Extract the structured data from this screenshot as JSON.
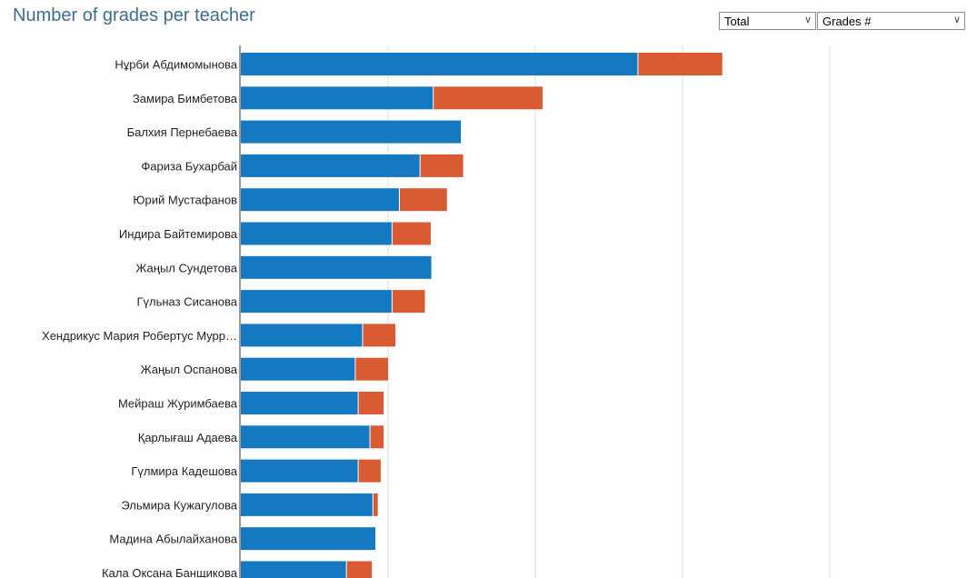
{
  "title": "Number of grades per teacher",
  "controls": {
    "total_select": {
      "value": "Total",
      "icon": "chevron-down-icon"
    },
    "metric_select": {
      "value": "Grades #",
      "icon": "chevron-down-icon"
    }
  },
  "colors": {
    "primary": "#1479c1",
    "secondary": "#d95b34",
    "title": "#3e6e8e",
    "grid": "#dcdcdc"
  },
  "chart_data": {
    "type": "bar",
    "orientation": "horizontal",
    "stacked": true,
    "title": "Number of grades per teacher",
    "categories": [
      "Нұрби Абдимомынова",
      "Замира Бимбетова",
      "Балхия Пернебаева",
      "Фариза Бухарбай",
      "Юрий Мустафанов",
      "Индира Байтемирова",
      "Жаңыл Сундетова",
      "Гүльназ Сисанова",
      "Хендрикус Мария Робертус Мурр…",
      "Жаңыл Оспанова",
      "Мейраш Журимбаева",
      "Қарлығаш Адаева",
      "Гүлмира Кадешова",
      "Эльмира Кужагулова",
      "Мадина Абылайханова",
      "Кала Оксана Банщикова"
    ],
    "series": [
      {
        "values": [
          270,
          131,
          150,
          122,
          108,
          103,
          130,
          103,
          83,
          78,
          80,
          88,
          80,
          90,
          92,
          72
        ]
      },
      {
        "values": [
          57,
          74,
          0,
          29,
          32,
          26,
          0,
          22,
          22,
          22,
          17,
          9,
          15,
          3,
          0,
          17
        ]
      }
    ],
    "xlim": [
      0,
      500
    ],
    "grid": true,
    "legend": "none"
  }
}
